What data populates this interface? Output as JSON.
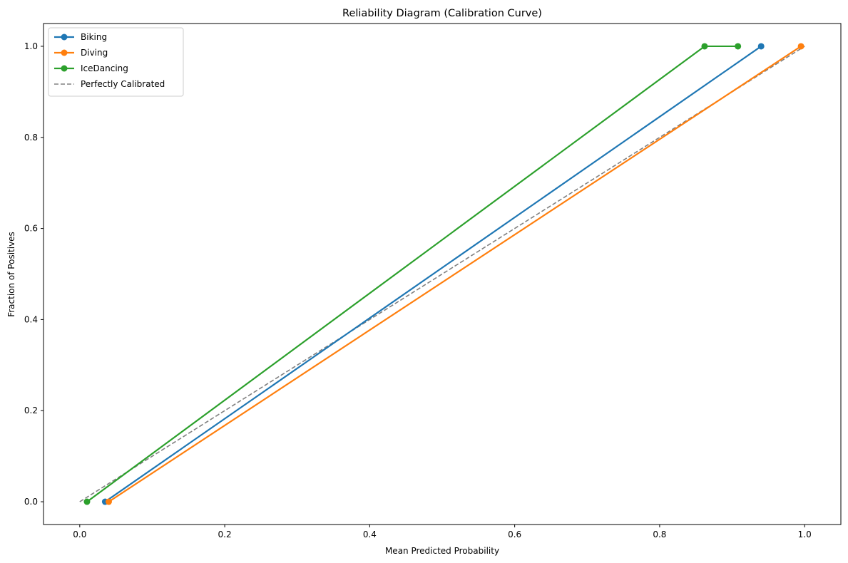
{
  "chart_data": {
    "type": "line",
    "title": "Reliability Diagram (Calibration Curve)",
    "xlabel": "Mean Predicted Probability",
    "ylabel": "Fraction of Positives",
    "xlim": [
      -0.05,
      1.05
    ],
    "ylim": [
      -0.05,
      1.05
    ],
    "xticks": [
      0.0,
      0.2,
      0.4,
      0.6,
      0.8,
      1.0
    ],
    "yticks": [
      0.0,
      0.2,
      0.4,
      0.6,
      0.8,
      1.0
    ],
    "xtick_labels": [
      "0.0",
      "0.2",
      "0.4",
      "0.6",
      "0.8",
      "1.0"
    ],
    "ytick_labels": [
      "0.0",
      "0.2",
      "0.4",
      "0.6",
      "0.8",
      "1.0"
    ],
    "grid": false,
    "legend_placement": "top-left",
    "series": [
      {
        "name": "Biking",
        "color": "#1f77b4",
        "marker": "circle",
        "x": [
          0.035,
          0.94
        ],
        "y": [
          0.0,
          1.0
        ]
      },
      {
        "name": "Diving",
        "color": "#ff7f0e",
        "marker": "circle",
        "x": [
          0.04,
          0.995
        ],
        "y": [
          0.0,
          1.0
        ]
      },
      {
        "name": "IceDancing",
        "color": "#2ca02c",
        "marker": "circle",
        "x": [
          0.01,
          0.862,
          0.908
        ],
        "y": [
          0.0,
          1.0,
          1.0
        ]
      }
    ],
    "reference_line": {
      "name": "Perfectly Calibrated",
      "color": "#808080",
      "style": "dashed",
      "x": [
        0.0,
        1.0
      ],
      "y": [
        0.0,
        1.0
      ]
    }
  }
}
